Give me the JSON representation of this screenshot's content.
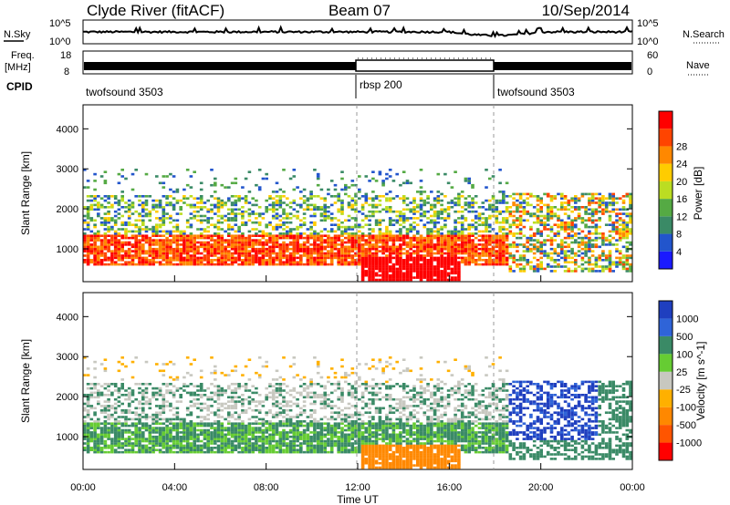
{
  "header": {
    "station": "Clyde River (fitACF)",
    "beam": "Beam 07",
    "date": "10/Sep/2014"
  },
  "labels": {
    "nsky": "N.Sky",
    "nsearch": "N.Search",
    "freq_line1": "Freq.",
    "freq_line2": "[MHz]",
    "nave": "Nave",
    "cpid": "CPID",
    "noise_tick_top": "10^5",
    "noise_tick_bottom": "10^0",
    "freq_tick_top": "18",
    "freq_tick_bottom": "8",
    "nave_tick_top": "60",
    "nave_tick_bottom": "0"
  },
  "cpid_segments": [
    {
      "label": "twofsound 3503",
      "start": 0
    },
    {
      "label": "rbsp 200",
      "start": 12
    },
    {
      "label": "twofsound 3503",
      "start": 18
    }
  ],
  "x_axis": {
    "title": "Time UT",
    "ticks": [
      "00:00",
      "04:00",
      "08:00",
      "12:00",
      "16:00",
      "20:00",
      "00:00"
    ]
  },
  "y_axis": {
    "title": "Slant Range [km]",
    "ticks": [
      "1000",
      "2000",
      "3000",
      "4000"
    ]
  },
  "power_scale": {
    "title": "Power [dB]",
    "labels": [
      "4",
      "8",
      "12",
      "16",
      "20",
      "24",
      "28"
    ],
    "colors": [
      "#1a1aff",
      "#2255cc",
      "#3a8a66",
      "#55aa44",
      "#bbdd22",
      "#ffcc00",
      "#ff8800",
      "#ff4400",
      "#ff0000"
    ]
  },
  "velocity_scale": {
    "title": "Velocity [m s^-1]",
    "labels": [
      "1000",
      "500",
      "100",
      "25",
      "-25",
      "-100",
      "-500",
      "-1000"
    ],
    "colors": [
      "#1f3fbf",
      "#2f64d8",
      "#3a8a66",
      "#66cc33",
      "#c8c8c0",
      "#ffb000",
      "#ff8800",
      "#ff5500",
      "#ff0000"
    ]
  },
  "chart_data": [
    {
      "type": "heatmap",
      "title": "Power",
      "xlabel": "Time UT",
      "ylabel": "Slant Range [km]",
      "xlim": [
        0,
        24
      ],
      "ylim": [
        180,
        4600
      ],
      "colorbar": {
        "label": "Power [dB]",
        "ticks": [
          4,
          8,
          12,
          16,
          20,
          24,
          28
        ]
      },
      "features": [
        {
          "desc": "strong echo band",
          "time": [
            0,
            19
          ],
          "range": [
            500,
            1400
          ],
          "power_db": [
            24,
            30
          ]
        },
        {
          "desc": "moderate echoes",
          "time": [
            0,
            18
          ],
          "range": [
            1400,
            2400
          ],
          "power_db": [
            8,
            20
          ]
        },
        {
          "desc": "patchy echoes",
          "time": [
            18,
            24
          ],
          "range": [
            400,
            2400
          ],
          "power_db": [
            8,
            26
          ]
        }
      ]
    },
    {
      "type": "heatmap",
      "title": "Velocity",
      "xlabel": "Time UT",
      "ylabel": "Slant Range [km]",
      "xlim": [
        0,
        24
      ],
      "ylim": [
        180,
        4600
      ],
      "colorbar": {
        "label": "Velocity [m s^-1]",
        "ticks": [
          1000,
          500,
          100,
          25,
          -25,
          -100,
          -500,
          -1000
        ]
      },
      "features": [
        {
          "desc": "near-zero ground scatter",
          "time": [
            0,
            24
          ],
          "range": [
            600,
            2800
          ],
          "velocity": [
            -25,
            25
          ]
        },
        {
          "desc": "positive velocity region",
          "time": [
            18,
            22
          ],
          "range": [
            900,
            2100
          ],
          "velocity": [
            500,
            1000
          ]
        },
        {
          "desc": "negative velocity region",
          "time": [
            12,
            16
          ],
          "range": [
            300,
            800
          ],
          "velocity": [
            -500,
            -100
          ]
        }
      ]
    }
  ]
}
